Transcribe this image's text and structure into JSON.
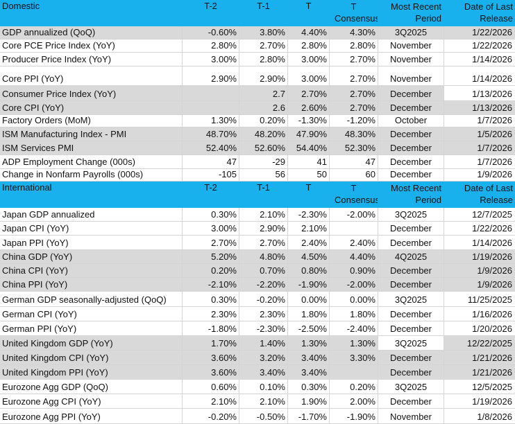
{
  "sections": [
    {
      "header": [
        "Domestic",
        "T-2",
        "T-1",
        "T",
        "T Consensus",
        "Most Recent Period",
        "Date of Last Release"
      ],
      "rows": [
        [
          "GDP annualized (QoQ)",
          "-0.60%",
          "3.80%",
          "4.40%",
          "4.30%",
          "3Q2025",
          "1/22/2026"
        ],
        [
          "Core PCE Price Index (YoY)",
          "2.80%",
          "2.70%",
          "2.80%",
          "2.80%",
          "November",
          "1/22/2026"
        ],
        [
          "Producer Price Index (YoY)",
          "3.00%",
          "2.80%",
          "3.00%",
          "2.70%",
          "November",
          "1/14/2026"
        ],
        [
          "Core PPI (YoY)",
          "2.90%",
          "2.90%",
          "3.00%",
          "2.70%",
          "November",
          "1/14/2026"
        ],
        [
          "Consumer Price Index (YoY)",
          null,
          "2.7",
          "2.70%",
          "2.70%",
          "December",
          "1/13/2026"
        ],
        [
          "Core CPI  (YoY)",
          null,
          "2.6",
          "2.60%",
          "2.70%",
          "December",
          "1/13/2026"
        ],
        [
          "Factory Orders (MoM)",
          "1.30%",
          "0.20%",
          "-1.30%",
          "-1.20%",
          "October",
          "1/7/2026"
        ],
        [
          "ISM Manufacturing Index - PMI",
          "48.70%",
          "48.20%",
          "47.90%",
          "48.30%",
          "December",
          "1/5/2026"
        ],
        [
          "ISM Services PMI",
          "52.40%",
          "52.60%",
          "54.40%",
          "52.30%",
          "December",
          "1/7/2026"
        ],
        [
          "ADP Employment Change (000s)",
          "47",
          "-29",
          "41",
          "47",
          "December",
          "1/7/2026"
        ],
        [
          "Change in Nonfarm Payrolls (000s)",
          "-105",
          "56",
          "50",
          "60",
          "December",
          "1/9/2026"
        ]
      ]
    },
    {
      "header": [
        "International",
        "T-2",
        "T-1",
        "T",
        "T Consensus",
        "Most Recent Period",
        "Date of Last Release"
      ],
      "rows": [
        [
          "Japan GDP annualized",
          "0.30%",
          "2.10%",
          "-2.30%",
          "-2.00%",
          "3Q2025",
          "12/7/2025"
        ],
        [
          "Japan CPI (YoY)",
          "3.00%",
          "2.90%",
          "2.10%",
          null,
          "December",
          "1/22/2026"
        ],
        [
          "Japan PPI (YoY)",
          "2.70%",
          "2.70%",
          "2.40%",
          "2.40%",
          "December",
          "1/14/2026"
        ],
        [
          "China GDP (YoY)",
          "5.20%",
          "4.80%",
          "4.50%",
          "4.40%",
          "4Q2025",
          "1/19/2026"
        ],
        [
          "China CPI (YoY)",
          "0.20%",
          "0.70%",
          "0.80%",
          "0.90%",
          "December",
          "1/9/2026"
        ],
        [
          "China PPI (YoY)",
          "-2.10%",
          "-2.20%",
          "-1.90%",
          "-2.00%",
          "December",
          "1/9/2026"
        ],
        [
          "German GDP seasonally-adjusted (QoQ)",
          "0.30%",
          "-0.20%",
          "0.00%",
          "0.00%",
          "3Q2025",
          "11/25/2025"
        ],
        [
          "German CPI (YoY)",
          "2.30%",
          "2.30%",
          "1.80%",
          "1.80%",
          "December",
          "1/16/2026"
        ],
        [
          "German PPI (YoY)",
          "-1.80%",
          "-2.30%",
          "-2.50%",
          "-2.40%",
          "December",
          "1/20/2026"
        ],
        [
          "United Kingdom GDP (YoY)",
          "1.70%",
          "1.40%",
          "1.30%",
          "1.30%",
          "3Q2025",
          "12/22/2025"
        ],
        [
          "United Kingdom CPI (YoY)",
          "3.60%",
          "3.20%",
          "3.40%",
          "3.30%",
          "December",
          "1/21/2026"
        ],
        [
          "United Kingdom  PPI (YoY)",
          "3.60%",
          "3.40%",
          "3.40%",
          null,
          "December",
          "1/21/2026"
        ],
        [
          "Eurozone Agg GDP (QoQ)",
          "0.60%",
          "0.10%",
          "0.30%",
          "0.20%",
          "3Q2025",
          "12/5/2025"
        ],
        [
          "Eurozone Agg CPI (YoY)",
          "2.10%",
          "2.10%",
          "1.90%",
          "2.00%",
          "December",
          "1/19/2026"
        ],
        [
          "Eurozone Agg PPI (YoY)",
          "-0.20%",
          "-0.50%",
          "-1.70%",
          "-1.90%",
          "November",
          "1/8/2026"
        ]
      ]
    }
  ]
}
